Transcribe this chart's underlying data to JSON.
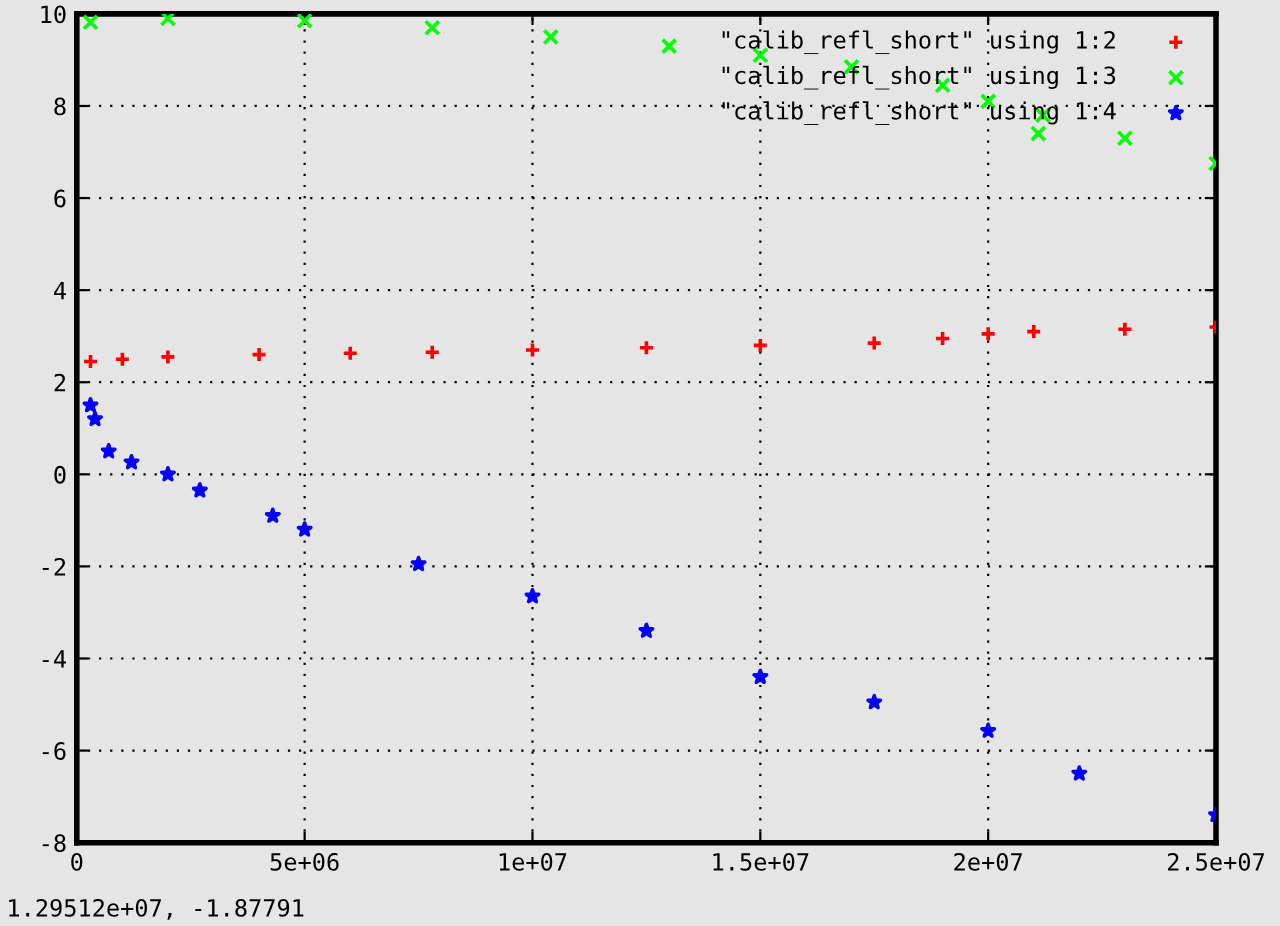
{
  "chart_data": {
    "type": "scatter",
    "xlim": [
      0,
      25000000
    ],
    "ylim": [
      -8,
      10
    ],
    "xticks": [
      0,
      {
        "value": 5000000,
        "label": "5e+06"
      },
      {
        "value": 10000000,
        "label": "1e+07"
      },
      {
        "value": 15000000,
        "label": "1.5e+07"
      },
      {
        "value": 20000000,
        "label": "2e+07"
      },
      {
        "value": 25000000,
        "label": "2.5e+07"
      }
    ],
    "yticks": [
      -8,
      -6,
      -4,
      -2,
      0,
      2,
      4,
      6,
      8,
      10
    ],
    "grid": true,
    "legend": "top right",
    "annotations": [
      "1.29512e+07, -1.87791"
    ],
    "series": [
      {
        "name": "\"calib_refl_short\" using 1:2",
        "color": "#ff0000",
        "marker": "cross",
        "x": [
          300000,
          1000000,
          2000000,
          4000000,
          6000000,
          7800000,
          10000000,
          12500000,
          15000000,
          17500000,
          19000000,
          20000000,
          21000000,
          23000000,
          25000000
        ],
        "values": [
          2.45,
          2.5,
          2.55,
          2.6,
          2.63,
          2.65,
          2.7,
          2.75,
          2.8,
          2.85,
          2.95,
          3.05,
          3.1,
          3.15,
          3.2
        ]
      },
      {
        "name": "\"calib_refl_short\" using 1:3",
        "color": "#00ff00",
        "marker": "x",
        "x": [
          300000,
          2000000,
          5000000,
          7800000,
          10400000,
          13000000,
          15000000,
          17000000,
          19000000,
          20000000,
          21100000,
          21200000,
          23000000,
          25000000
        ],
        "values": [
          9.82,
          9.9,
          9.85,
          9.7,
          9.5,
          9.3,
          9.1,
          8.85,
          8.45,
          8.1,
          7.4,
          7.8,
          7.3,
          6.75
        ]
      },
      {
        "name": "\"calib_refl_short\" using 1:4",
        "color": "#0000ff",
        "marker": "star",
        "x": [
          300000,
          400000,
          700000,
          1200000,
          2000000,
          2700000,
          4300000,
          5000000,
          7500000,
          10000000,
          12500000,
          15000000,
          17500000,
          20000000,
          22000000,
          25000000
        ],
        "values": [
          1.5,
          1.2,
          0.5,
          0.26,
          0.0,
          -0.35,
          -0.9,
          -1.2,
          -1.95,
          -2.65,
          -3.4,
          -4.4,
          -4.95,
          -5.57,
          -6.5,
          -7.4
        ]
      }
    ]
  }
}
